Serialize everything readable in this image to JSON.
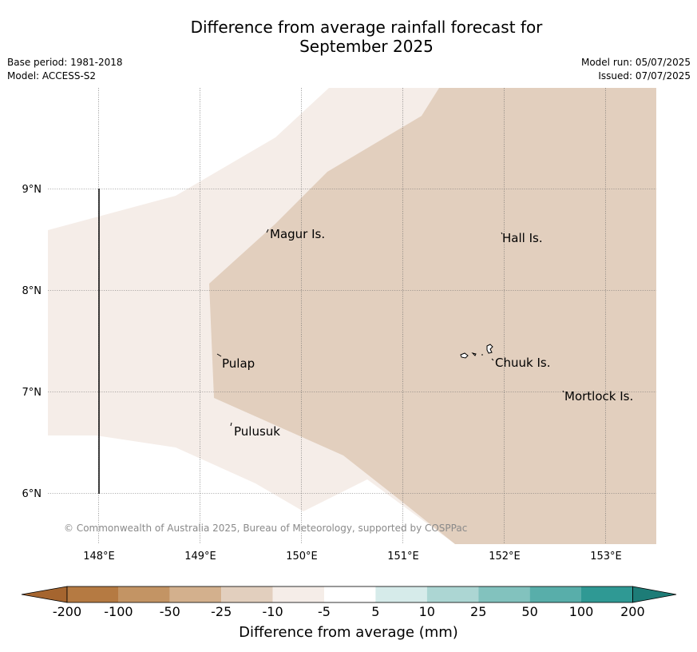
{
  "title": {
    "line1": "Difference from average rainfall forecast for",
    "line2": "September 2025"
  },
  "meta": {
    "base_period": "Base period: 1981-2018",
    "model": "Model: ACCESS-S2",
    "model_run": "Model run: 05/07/2025",
    "issued": "Issued: 07/07/2025"
  },
  "map": {
    "lon_ticks": [
      "148°E",
      "149°E",
      "150°E",
      "151°E",
      "152°E",
      "153°E"
    ],
    "lat_ticks": [
      "9°N",
      "8°N",
      "7°N",
      "6°N"
    ],
    "places": [
      "Magur Is.",
      "Hall Is.",
      "Pulap",
      "Chuuk Is.",
      "Mortlock Is.",
      "Pulusuk"
    ],
    "fill_colors": {
      "band_minus10_minus5": "#f5ede8",
      "band_minus25_minus10": "#e2cfbe"
    },
    "copyright": "© Commonwealth of Australia 2025, Bureau of Meteorology, supported by COSPPac"
  },
  "colorbar": {
    "labels": [
      "-200",
      "-100",
      "-50",
      "-25",
      "-10",
      "-5",
      "5",
      "10",
      "25",
      "50",
      "100",
      "200"
    ],
    "colors": [
      "#a5652f",
      "#b57a42",
      "#c39464",
      "#d3b08d",
      "#e2cfbe",
      "#f5ede8",
      "#ffffff",
      "#d6ebea",
      "#acd6d3",
      "#82c2be",
      "#58aeaa",
      "#2f9994",
      "#1d7c77"
    ],
    "title": "Difference from average (mm)"
  }
}
